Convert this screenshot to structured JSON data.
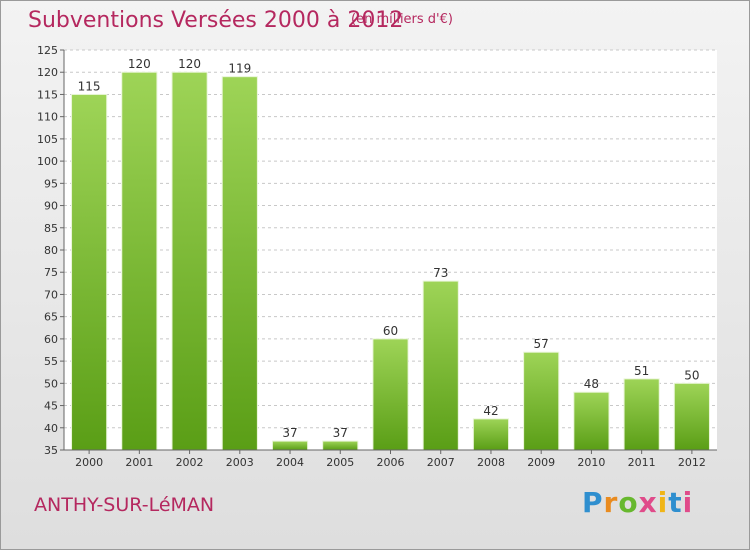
{
  "header": {
    "title": "Subventions Versées 2000 à 2012",
    "unit": "(en milliers d'€)"
  },
  "footer": {
    "city": "ANTHY-SUR-LéMAN",
    "brand": [
      "P",
      "r",
      "o",
      "x",
      "i",
      "t",
      "i"
    ]
  },
  "colors": {
    "accent": "#b5285f",
    "bar_top": "#9ed457",
    "bar_bottom": "#5a9e16",
    "grid": "#c8c8c8"
  },
  "chart_data": {
    "type": "bar",
    "categories": [
      "2000",
      "2001",
      "2002",
      "2003",
      "2004",
      "2005",
      "2006",
      "2007",
      "2008",
      "2009",
      "2010",
      "2011",
      "2012"
    ],
    "values": [
      115,
      120,
      120,
      119,
      37,
      37,
      60,
      73,
      42,
      57,
      48,
      51,
      50
    ],
    "ylim": [
      35,
      125
    ],
    "yticks": [
      35,
      40,
      45,
      50,
      55,
      60,
      65,
      70,
      75,
      80,
      85,
      90,
      95,
      100,
      105,
      110,
      115,
      120,
      125
    ],
    "grid": true,
    "legend": "none"
  }
}
